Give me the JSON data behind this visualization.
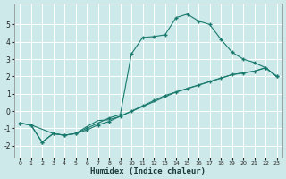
{
  "xlabel": "Humidex (Indice chaleur)",
  "bg_color": "#cde9e9",
  "grid_color": "#ffffff",
  "line_color": "#1a7a6e",
  "xlim": [
    -0.5,
    23.5
  ],
  "ylim": [
    -2.7,
    6.2
  ],
  "yticks": [
    -2,
    -1,
    0,
    1,
    2,
    3,
    4,
    5
  ],
  "xticks": [
    0,
    1,
    2,
    3,
    4,
    5,
    6,
    7,
    8,
    9,
    10,
    11,
    12,
    13,
    14,
    15,
    16,
    17,
    18,
    19,
    20,
    21,
    22,
    23
  ],
  "line1_x": [
    0,
    1,
    2,
    3,
    4,
    5,
    6,
    7,
    8,
    9,
    10,
    11,
    12,
    13,
    14,
    15,
    16,
    17,
    18,
    19,
    20,
    21,
    22,
    23
  ],
  "line1_y": [
    -0.7,
    -0.8,
    -1.8,
    -1.3,
    -1.4,
    -1.3,
    -1.1,
    -0.8,
    -0.6,
    -0.3,
    0.0,
    0.3,
    0.6,
    0.9,
    1.1,
    1.3,
    1.5,
    1.7,
    1.9,
    2.1,
    2.2,
    2.3,
    2.5,
    2.0
  ],
  "line2_x": [
    0,
    1,
    2,
    3,
    4,
    5,
    6,
    7,
    8,
    9,
    10,
    11,
    12,
    13,
    14,
    15,
    16,
    17,
    18,
    19,
    20,
    21,
    22,
    23
  ],
  "line2_y": [
    -0.7,
    -0.8,
    -1.8,
    -1.3,
    -1.4,
    -1.3,
    -1.0,
    -0.7,
    -0.4,
    -0.2,
    3.3,
    4.25,
    4.3,
    4.4,
    5.4,
    5.6,
    5.2,
    5.0,
    4.15,
    3.4,
    3.0,
    2.8,
    2.5,
    2.0
  ],
  "line3_x": [
    0,
    1,
    3,
    4,
    5,
    6,
    7,
    8,
    9,
    14,
    15,
    16,
    17,
    18,
    19,
    20,
    21,
    22,
    23
  ],
  "line3_y": [
    -0.7,
    -0.8,
    -1.3,
    -1.4,
    -1.3,
    -0.9,
    -0.55,
    -0.5,
    -0.3,
    1.1,
    1.3,
    1.5,
    1.7,
    1.9,
    2.1,
    2.2,
    2.3,
    2.5,
    2.0
  ]
}
